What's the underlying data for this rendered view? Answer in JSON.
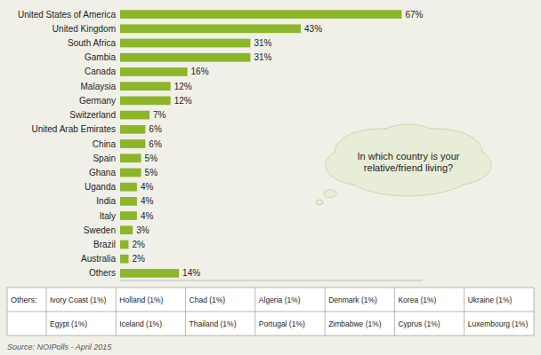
{
  "chart_data": {
    "type": "bar",
    "orientation": "horizontal",
    "categories": [
      "United States of America",
      "United Kingdom",
      "South Africa",
      "Gambia",
      "Canada",
      "Malaysia",
      "Germany",
      "Switzerland",
      "United Arab Emirates",
      "China",
      "Spain",
      "Ghana",
      "Uganda",
      "India",
      "Italy",
      "Sweden",
      "Brazil",
      "Australia",
      "Others"
    ],
    "values": [
      67,
      43,
      31,
      31,
      16,
      12,
      12,
      7,
      6,
      6,
      5,
      5,
      4,
      4,
      4,
      3,
      2,
      2,
      14
    ],
    "value_labels": [
      "67%",
      "43%",
      "31%",
      "31%",
      "16%",
      "12%",
      "12%",
      "7%",
      "6%",
      "6%",
      "5%",
      "5%",
      "4%",
      "4%",
      "4%",
      "3%",
      "2%",
      "2%",
      "14%"
    ],
    "data_labels": true,
    "color": "#8db52a",
    "xlim": [
      0,
      72
    ],
    "tick_labels": "y",
    "grid": false,
    "annotations": [
      "In which country is your\nrelative/friend living?",
      "Others:",
      "Ivory Coast (1%)",
      "Holland (1%)",
      "Chad (1%)",
      "Algeria (1%)",
      "Denmark (1%)",
      "Korea (1%)",
      "Ukraine (1%)",
      "Egypt (1%)",
      "Iceland (1%)",
      "Thailand (1%)",
      "Portugal (1%)",
      "Zimbabwe (1%)",
      "Cyprus (1%)",
      "Luxembourg (1%)",
      "Source: NOIPolls - April 2015"
    ]
  }
}
